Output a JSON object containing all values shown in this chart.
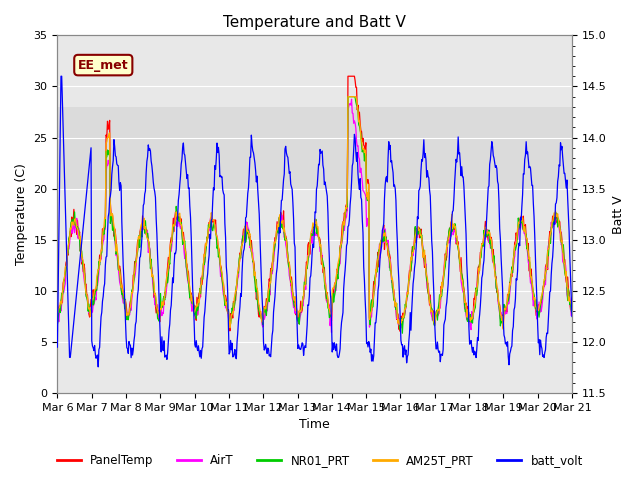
{
  "title": "Temperature and Batt V",
  "xlabel": "Time",
  "ylabel_left": "Temperature (C)",
  "ylabel_right": "Batt V",
  "xlim": [
    0,
    15
  ],
  "ylim_left": [
    0,
    35
  ],
  "ylim_right": [
    11.5,
    15.0
  ],
  "yticks_left": [
    0,
    5,
    10,
    15,
    20,
    25,
    30,
    35
  ],
  "yticks_right": [
    11.5,
    12.0,
    12.5,
    13.0,
    13.5,
    14.0,
    14.5,
    15.0
  ],
  "xtick_labels": [
    "Mar 6",
    "Mar 7",
    "Mar 8",
    "Mar 9",
    "Mar 10",
    "Mar 11",
    "Mar 12",
    "Mar 13",
    "Mar 14",
    "Mar 15",
    "Mar 16",
    "Mar 17",
    "Mar 18",
    "Mar 19",
    "Mar 20",
    "Mar 21"
  ],
  "station_label": "EE_met",
  "legend_entries": [
    "PanelTemp",
    "AirT",
    "NR01_PRT",
    "AM25T_PRT",
    "batt_volt"
  ],
  "legend_colors": [
    "#ff0000",
    "#ff00ff",
    "#00cc00",
    "#ffaa00",
    "#0000ff"
  ],
  "line_colors": {
    "PanelTemp": "#ff0000",
    "AirT": "#ff00ff",
    "NR01_PRT": "#00cc00",
    "AM25T_PRT": "#ffaa00",
    "batt_volt": "#0000ff"
  },
  "background_color": "#ffffff",
  "plot_bg_color": "#e8e8e8",
  "grid_color": "#ffffff",
  "title_fontsize": 11,
  "label_fontsize": 9,
  "tick_fontsize": 8,
  "shaded_band_ymin": 20,
  "shaded_band_ymax": 28
}
